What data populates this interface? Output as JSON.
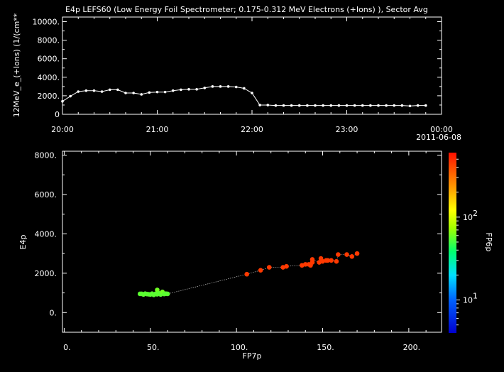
{
  "chart_data": [
    {
      "type": "line",
      "title": "E4p LEFS60 (Low Energy Foil Spectrometer; 0.175-0.312 MeV Electrons (+Ions) ), Sector Avg",
      "ylabel": "12MeV_e_(+Ions) (1/(cm**",
      "xlabel": "",
      "xlim": [
        "20:00",
        "00:00"
      ],
      "ylim": [
        0,
        10500
      ],
      "yticks": [
        "0",
        "2000.",
        "4000.",
        "6000.",
        "8000.",
        "10000."
      ],
      "xticks": [
        "20:00",
        "21:00",
        "22:00",
        "23:00",
        "00:00"
      ],
      "date_label": "2011-06-08",
      "grid": false,
      "series": [
        {
          "x": [
            "20:00",
            "20:05",
            "20:10",
            "20:15",
            "20:20",
            "20:25",
            "20:30",
            "20:35",
            "20:40",
            "20:45",
            "20:50",
            "20:55",
            "21:00",
            "21:05",
            "21:10",
            "21:15",
            "21:20",
            "21:25",
            "21:30",
            "21:35",
            "21:40",
            "21:45",
            "21:50",
            "21:55",
            "22:00",
            "22:05",
            "22:10",
            "22:15",
            "22:20",
            "22:25",
            "22:30",
            "22:35",
            "22:40",
            "22:45",
            "22:50",
            "22:55",
            "23:00",
            "23:05",
            "23:10",
            "23:15",
            "23:20",
            "23:25",
            "23:30",
            "23:35",
            "23:40",
            "23:45",
            "23:50"
          ],
          "values": [
            1400,
            1950,
            2450,
            2550,
            2550,
            2450,
            2650,
            2650,
            2300,
            2300,
            2150,
            2350,
            2400,
            2400,
            2550,
            2650,
            2700,
            2700,
            2850,
            3000,
            3000,
            3000,
            2950,
            2800,
            2300,
            1000,
            1000,
            950,
            950,
            950,
            950,
            950,
            950,
            950,
            950,
            950,
            950,
            950,
            950,
            950,
            950,
            950,
            950,
            950,
            900,
            950,
            950
          ]
        }
      ]
    },
    {
      "type": "scatter",
      "xlabel": "FP7p",
      "ylabel": "E4p",
      "xlim": [
        -1,
        219
      ],
      "ylim": [
        -1000,
        8200
      ],
      "xticks": [
        "0.",
        "50.",
        "100.",
        "150.",
        "200."
      ],
      "yticks": [
        "0.",
        "2000.",
        "4000.",
        "6000.",
        "8000."
      ],
      "colorbar": {
        "label": "FP6p",
        "scale": "log",
        "range": [
          4,
          600
        ],
        "ticks": [
          "10",
          "10"
        ],
        "tick_exponents": [
          "1",
          "2"
        ]
      },
      "points": [
        {
          "x": 44,
          "y": 950,
          "c": 55
        },
        {
          "x": 45,
          "y": 950,
          "c": 55
        },
        {
          "x": 46,
          "y": 920,
          "c": 55
        },
        {
          "x": 47,
          "y": 960,
          "c": 55
        },
        {
          "x": 48,
          "y": 940,
          "c": 55
        },
        {
          "x": 49,
          "y": 930,
          "c": 55
        },
        {
          "x": 50,
          "y": 920,
          "c": 55
        },
        {
          "x": 51,
          "y": 960,
          "c": 55
        },
        {
          "x": 52,
          "y": 900,
          "c": 55
        },
        {
          "x": 53,
          "y": 950,
          "c": 55
        },
        {
          "x": 54,
          "y": 930,
          "c": 55
        },
        {
          "x": 54,
          "y": 1150,
          "c": 60
        },
        {
          "x": 55,
          "y": 980,
          "c": 55
        },
        {
          "x": 56,
          "y": 920,
          "c": 55
        },
        {
          "x": 57,
          "y": 1050,
          "c": 60
        },
        {
          "x": 58,
          "y": 940,
          "c": 55
        },
        {
          "x": 59,
          "y": 960,
          "c": 55
        },
        {
          "x": 60,
          "y": 950,
          "c": 55
        },
        {
          "x": 106,
          "y": 1950,
          "c": 450
        },
        {
          "x": 114,
          "y": 2150,
          "c": 450
        },
        {
          "x": 119,
          "y": 2300,
          "c": 450
        },
        {
          "x": 127,
          "y": 2300,
          "c": 450
        },
        {
          "x": 129,
          "y": 2350,
          "c": 450
        },
        {
          "x": 138,
          "y": 2400,
          "c": 450
        },
        {
          "x": 140,
          "y": 2450,
          "c": 450
        },
        {
          "x": 142,
          "y": 2450,
          "c": 450
        },
        {
          "x": 143,
          "y": 2400,
          "c": 450
        },
        {
          "x": 144,
          "y": 2550,
          "c": 450
        },
        {
          "x": 144,
          "y": 2700,
          "c": 450
        },
        {
          "x": 148,
          "y": 2550,
          "c": 450
        },
        {
          "x": 149,
          "y": 2750,
          "c": 450
        },
        {
          "x": 150,
          "y": 2600,
          "c": 450
        },
        {
          "x": 152,
          "y": 2650,
          "c": 450
        },
        {
          "x": 153,
          "y": 2650,
          "c": 450
        },
        {
          "x": 155,
          "y": 2650,
          "c": 450
        },
        {
          "x": 158,
          "y": 2600,
          "c": 450
        },
        {
          "x": 159,
          "y": 2950,
          "c": 450
        },
        {
          "x": 164,
          "y": 2950,
          "c": 450
        },
        {
          "x": 167,
          "y": 2850,
          "c": 450
        },
        {
          "x": 170,
          "y": 3000,
          "c": 450
        }
      ]
    }
  ]
}
